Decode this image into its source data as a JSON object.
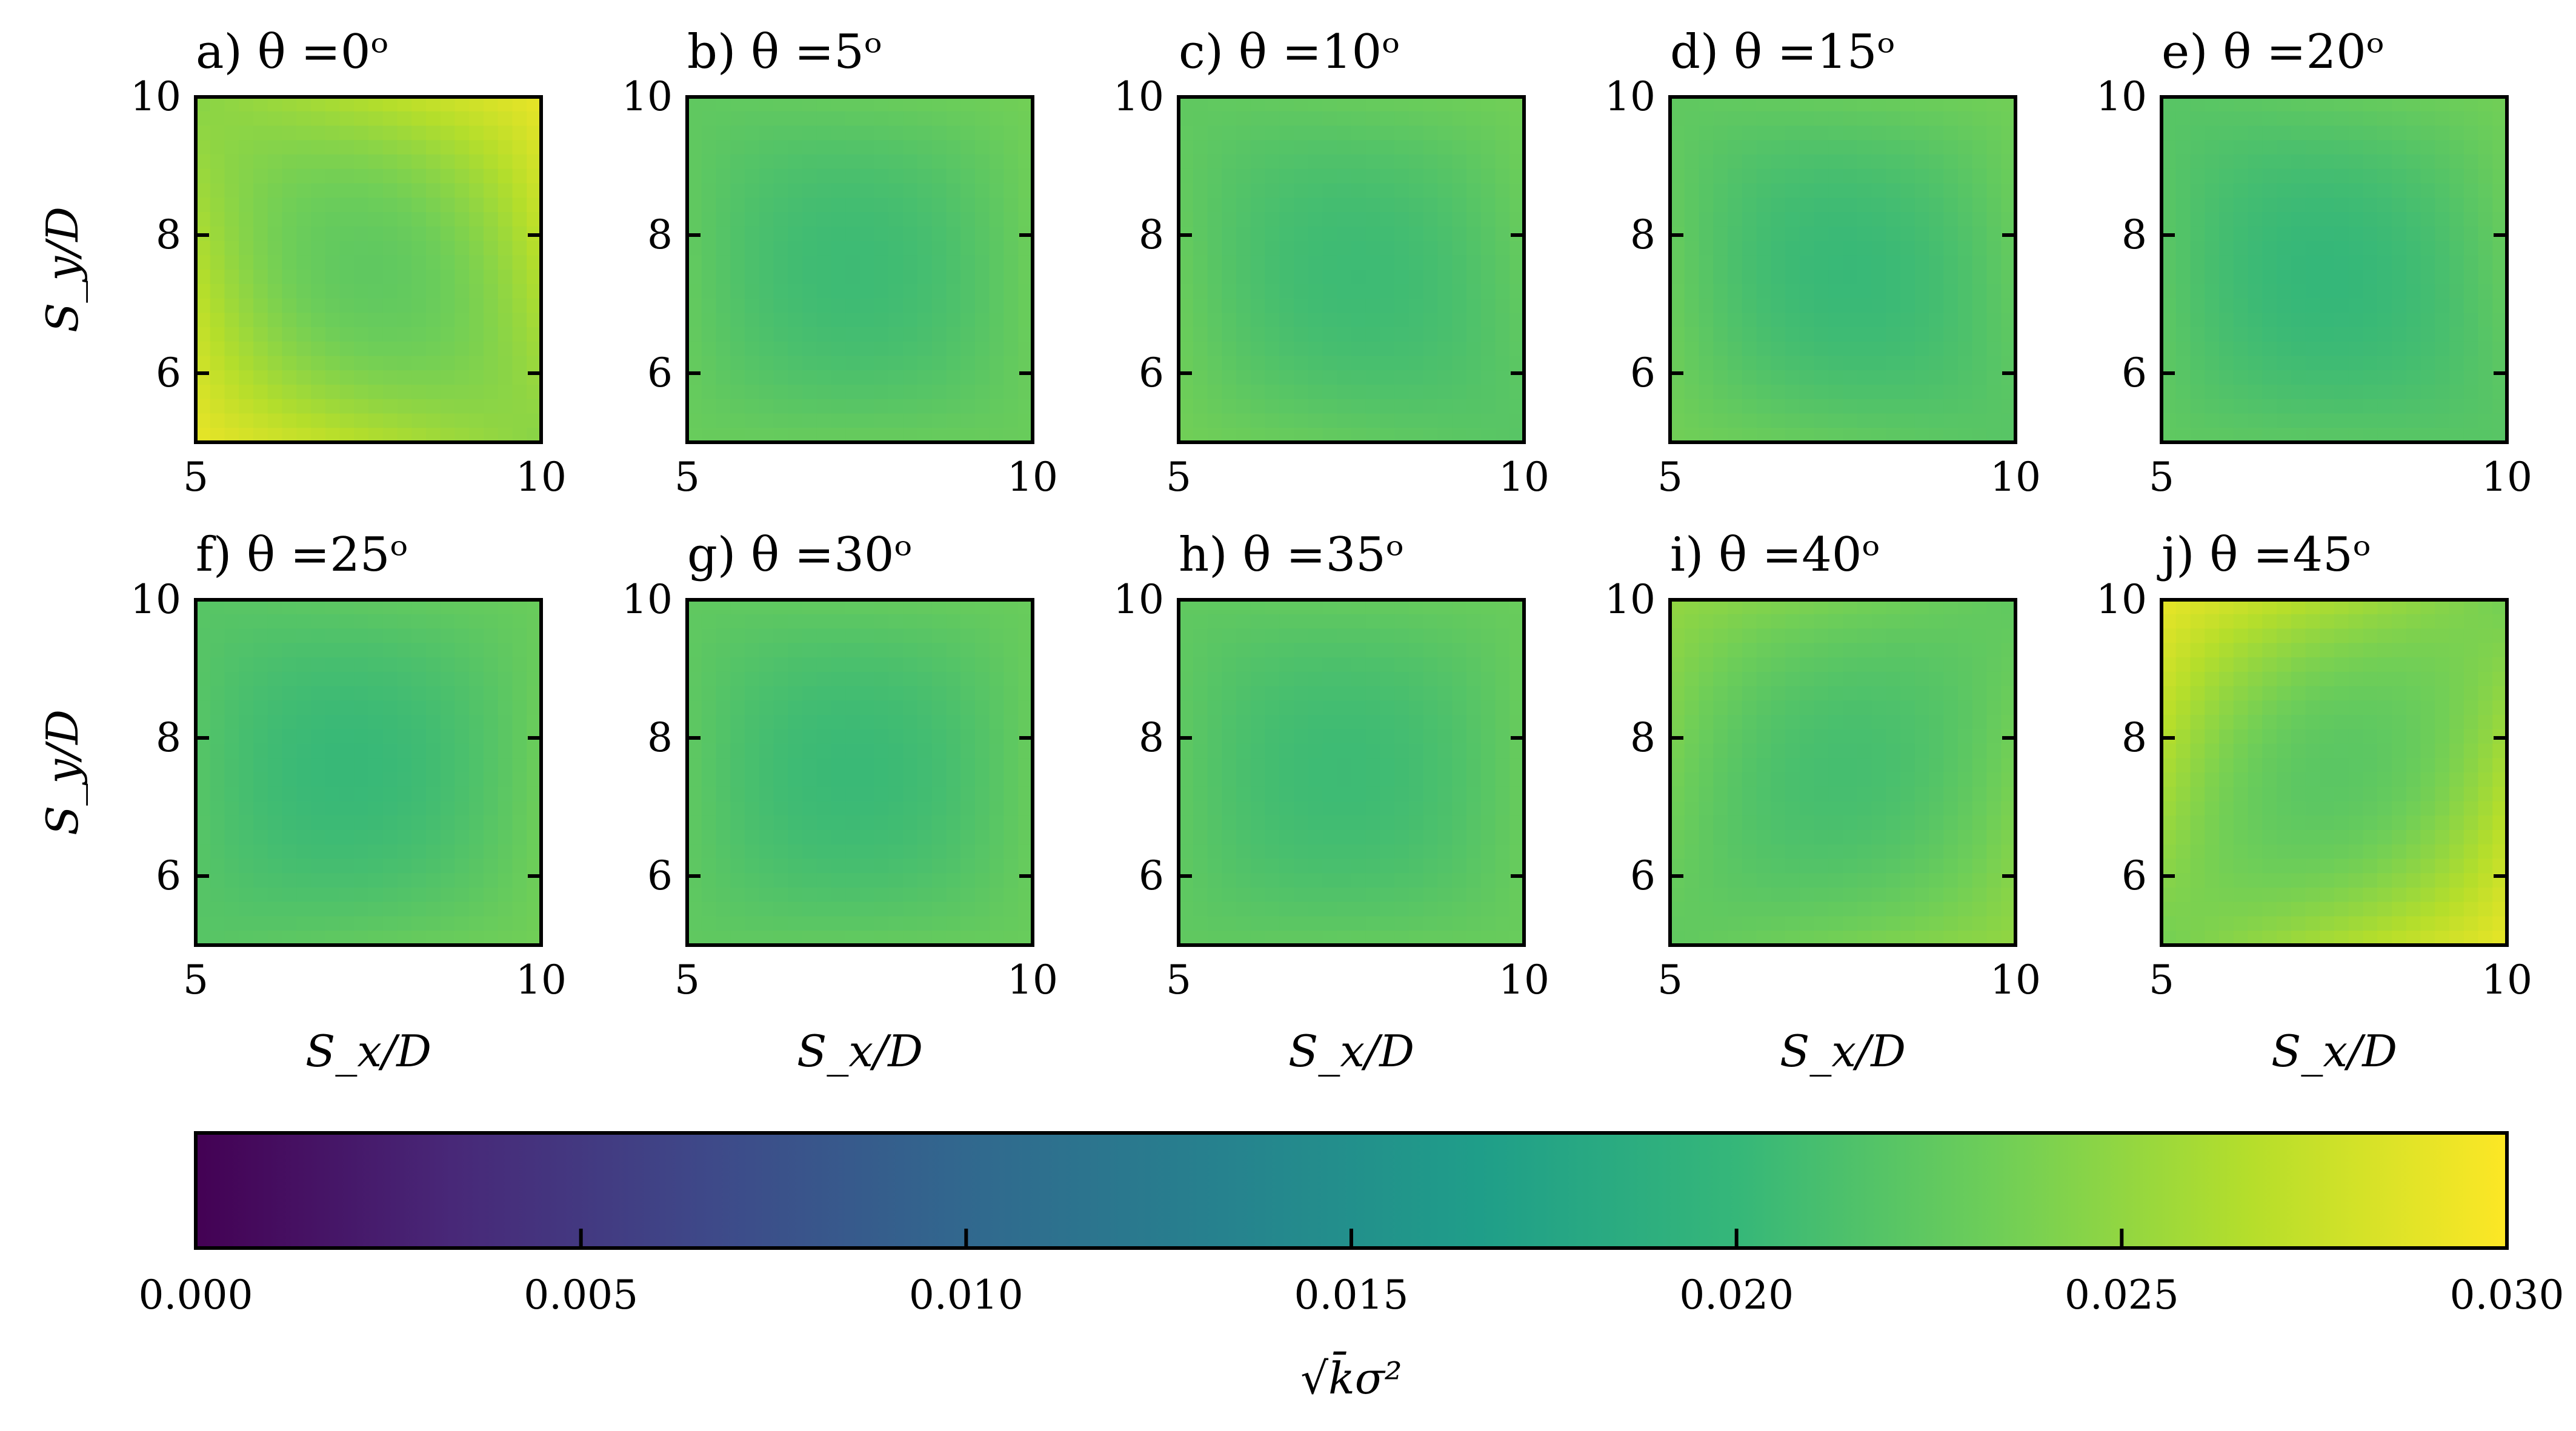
{
  "figure": {
    "background": "#ffffff"
  },
  "chart_data": {
    "type": "heatmap",
    "panels": [
      {
        "label": "a) θ =0ᵒ",
        "theta": 0,
        "corner_values": {
          "bottom_left": 0.029,
          "bottom_right": 0.0245,
          "top_left": 0.0245,
          "top_right": 0.029
        },
        "center_value": 0.0225
      },
      {
        "label": "b) θ =5ᵒ",
        "theta": 5,
        "corner_values": {
          "bottom_left": 0.023,
          "bottom_right": 0.023,
          "top_left": 0.0225,
          "top_right": 0.0235
        },
        "center_value": 0.0205
      },
      {
        "label": "c) θ =10ᵒ",
        "theta": 10,
        "corner_values": {
          "bottom_left": 0.0235,
          "bottom_right": 0.022,
          "top_left": 0.0225,
          "top_right": 0.0235
        },
        "center_value": 0.0205
      },
      {
        "label": "d) θ =15ᵒ",
        "theta": 15,
        "corner_values": {
          "bottom_left": 0.0235,
          "bottom_right": 0.022,
          "top_left": 0.0225,
          "top_right": 0.0235
        },
        "center_value": 0.0202
      },
      {
        "label": "e) θ =20ᵒ",
        "theta": 20,
        "corner_values": {
          "bottom_left": 0.0225,
          "bottom_right": 0.022,
          "top_left": 0.022,
          "top_right": 0.0235
        },
        "center_value": 0.02
      },
      {
        "label": "f) θ =25ᵒ",
        "theta": 25,
        "corner_values": {
          "bottom_left": 0.022,
          "bottom_right": 0.0235,
          "top_left": 0.022,
          "top_right": 0.023
        },
        "center_value": 0.0202
      },
      {
        "label": "g) θ =30ᵒ",
        "theta": 30,
        "corner_values": {
          "bottom_left": 0.0225,
          "bottom_right": 0.023,
          "top_left": 0.0225,
          "top_right": 0.023
        },
        "center_value": 0.0203
      },
      {
        "label": "h) θ =35ᵒ",
        "theta": 35,
        "corner_values": {
          "bottom_left": 0.0225,
          "bottom_right": 0.023,
          "top_left": 0.0225,
          "top_right": 0.023
        },
        "center_value": 0.0205
      },
      {
        "label": "i) θ =40ᵒ",
        "theta": 40,
        "corner_values": {
          "bottom_left": 0.0225,
          "bottom_right": 0.025,
          "top_left": 0.025,
          "top_right": 0.0225
        },
        "center_value": 0.021
      },
      {
        "label": "j) θ =45ᵒ",
        "theta": 45,
        "corner_values": {
          "bottom_left": 0.0235,
          "bottom_right": 0.029,
          "top_left": 0.029,
          "top_right": 0.0235
        },
        "center_value": 0.0222
      }
    ],
    "x_axis": {
      "label": "S_x/D",
      "range": [
        5,
        10
      ],
      "ticks": [
        5,
        10
      ],
      "tick_labels": [
        "5",
        "10"
      ]
    },
    "y_axis": {
      "label": "S_y/D",
      "range": [
        5,
        10
      ],
      "ticks": [
        6,
        8,
        10
      ],
      "tick_labels": [
        "6",
        "8",
        "10"
      ]
    },
    "colorbar": {
      "colormap": "viridis",
      "range": [
        0,
        0.03
      ],
      "ticks": [
        0,
        0.005,
        0.01,
        0.015,
        0.02,
        0.025,
        0.03
      ],
      "tick_labels": [
        "0.000",
        "0.005",
        "0.010",
        "0.015",
        "0.020",
        "0.025",
        "0.030"
      ],
      "label": "√k̄σ²",
      "orientation": "horizontal"
    },
    "grid": false
  }
}
